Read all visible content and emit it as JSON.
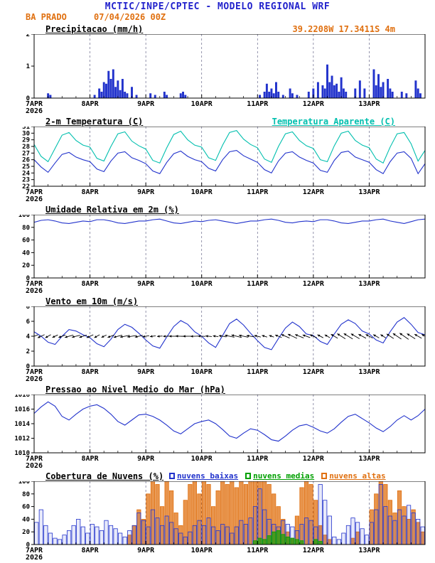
{
  "header": {
    "title": "MCTIC/INPE/CPTEC - MODELO REGIONAL WRF",
    "station": "BA PRADO",
    "run": "07/04/2026 00Z",
    "coords": "39.2208W 17.3411S 4m"
  },
  "colors": {
    "header_blue": "#2222cc",
    "orange": "#e07010",
    "cyan": "#00bfae",
    "line_blue": "#2233cc",
    "green": "#00a000",
    "grid": "#666688"
  },
  "x_axis": {
    "labels": [
      "7APR",
      "8APR",
      "9APR",
      "10APR",
      "11APR",
      "12APR",
      "13APR"
    ],
    "year": "2026",
    "hours_total": 168,
    "day_step": 24
  },
  "chart_data": [
    {
      "type": "bar",
      "title": "Precipitacao (mm/h)",
      "ylabel": "mm/h",
      "ylim": [
        0,
        2
      ],
      "yticks": [
        0,
        1,
        2
      ],
      "color": "#2233cc",
      "bars": [
        [
          6,
          0.15
        ],
        [
          7,
          0.1
        ],
        [
          26,
          0.1
        ],
        [
          28,
          0.3
        ],
        [
          29,
          0.2
        ],
        [
          30,
          0.5
        ],
        [
          31,
          0.45
        ],
        [
          32,
          0.85
        ],
        [
          33,
          0.6
        ],
        [
          34,
          0.9
        ],
        [
          35,
          0.35
        ],
        [
          36,
          0.55
        ],
        [
          37,
          0.25
        ],
        [
          38,
          0.6
        ],
        [
          39,
          0.2
        ],
        [
          40,
          0.15
        ],
        [
          42,
          0.35
        ],
        [
          44,
          0.1
        ],
        [
          50,
          0.15
        ],
        [
          52,
          0.1
        ],
        [
          56,
          0.2
        ],
        [
          57,
          0.1
        ],
        [
          63,
          0.15
        ],
        [
          64,
          0.2
        ],
        [
          65,
          0.1
        ],
        [
          97,
          0.1
        ],
        [
          99,
          0.2
        ],
        [
          100,
          0.45
        ],
        [
          101,
          0.2
        ],
        [
          102,
          0.3
        ],
        [
          103,
          0.15
        ],
        [
          104,
          0.5
        ],
        [
          105,
          0.2
        ],
        [
          107,
          0.1
        ],
        [
          110,
          0.3
        ],
        [
          111,
          0.15
        ],
        [
          113,
          0.1
        ],
        [
          118,
          0.2
        ],
        [
          120,
          0.3
        ],
        [
          122,
          0.5
        ],
        [
          124,
          0.4
        ],
        [
          125,
          0.3
        ],
        [
          126,
          1.05
        ],
        [
          127,
          0.5
        ],
        [
          128,
          0.7
        ],
        [
          129,
          0.4
        ],
        [
          130,
          0.45
        ],
        [
          131,
          0.2
        ],
        [
          132,
          0.65
        ],
        [
          133,
          0.3
        ],
        [
          134,
          0.2
        ],
        [
          138,
          0.3
        ],
        [
          140,
          0.55
        ],
        [
          142,
          0.3
        ],
        [
          146,
          0.9
        ],
        [
          147,
          0.4
        ],
        [
          148,
          0.75
        ],
        [
          149,
          0.35
        ],
        [
          150,
          0.5
        ],
        [
          152,
          0.6
        ],
        [
          153,
          0.3
        ],
        [
          154,
          0.2
        ],
        [
          158,
          0.2
        ],
        [
          160,
          0.15
        ],
        [
          164,
          0.55
        ],
        [
          165,
          0.3
        ],
        [
          166,
          0.15
        ]
      ]
    },
    {
      "type": "line",
      "title": "2-m Temperatura (C)",
      "right_label": "Temperatura Aparente (C)",
      "ylim": [
        22,
        31
      ],
      "yticks": [
        22,
        23,
        24,
        25,
        26,
        27,
        28,
        29,
        30,
        31
      ],
      "step_h": 3,
      "series": [
        {
          "name": "2-m Temperatura (C)",
          "color": "#2233cc",
          "values": [
            26.0,
            24.9,
            24.1,
            25.5,
            26.8,
            27.1,
            26.4,
            26.0,
            25.7,
            24.6,
            24.2,
            25.8,
            27.0,
            27.2,
            26.3,
            25.9,
            25.4,
            24.3,
            23.9,
            25.6,
            26.9,
            27.3,
            26.5,
            26.0,
            25.7,
            24.7,
            24.3,
            26.0,
            27.2,
            27.4,
            26.6,
            26.1,
            25.6,
            24.5,
            24.0,
            25.8,
            27.0,
            27.2,
            26.4,
            25.9,
            25.5,
            24.4,
            24.1,
            25.9,
            27.1,
            27.3,
            26.4,
            26.0,
            25.6,
            24.5,
            23.9,
            25.7,
            27.0,
            27.2,
            26.2,
            23.9,
            25.4
          ]
        },
        {
          "name": "Temperatura Aparente (C)",
          "color": "#00bfae",
          "values": [
            28.3,
            26.5,
            25.7,
            27.7,
            29.7,
            30.1,
            28.9,
            28.2,
            27.9,
            26.2,
            25.8,
            28.0,
            29.9,
            30.2,
            28.8,
            28.1,
            27.6,
            25.9,
            25.5,
            27.8,
            29.8,
            30.3,
            29.0,
            28.2,
            27.9,
            26.3,
            25.9,
            28.2,
            30.1,
            30.4,
            29.1,
            28.3,
            27.8,
            26.1,
            25.6,
            28.0,
            29.9,
            30.2,
            28.9,
            28.1,
            27.7,
            26.0,
            25.7,
            28.1,
            30.0,
            30.3,
            28.9,
            28.2,
            27.8,
            26.1,
            25.5,
            27.9,
            29.9,
            30.1,
            28.4,
            25.8,
            27.4
          ]
        }
      ]
    },
    {
      "type": "line",
      "title": "Umidade Relativa em 2m (%)",
      "ylim": [
        0,
        100
      ],
      "yticks": [
        0,
        20,
        40,
        60,
        80,
        100
      ],
      "step_h": 3,
      "series": [
        {
          "name": "Umidade Relativa em 2m (%)",
          "color": "#2233cc",
          "values": [
            88,
            91,
            92,
            90,
            87,
            86,
            88,
            90,
            89,
            92,
            92,
            90,
            87,
            86,
            88,
            90,
            90,
            92,
            93,
            90,
            87,
            86,
            88,
            90,
            89,
            91,
            92,
            90,
            88,
            86,
            88,
            90,
            90,
            92,
            93,
            91,
            88,
            87,
            89,
            90,
            89,
            92,
            92,
            90,
            87,
            86,
            88,
            90,
            90,
            92,
            93,
            90,
            88,
            86,
            89,
            92,
            93
          ]
        }
      ]
    },
    {
      "type": "wind",
      "title": "Vento em 10m (m/s)",
      "ylim": [
        0,
        8
      ],
      "yticks": [
        0,
        2,
        4,
        6,
        8
      ],
      "step_h": 3,
      "color": "#2233cc",
      "arrow_row_value": 4,
      "speed": [
        4.6,
        4.0,
        3.2,
        2.9,
        4.0,
        4.9,
        4.7,
        4.2,
        3.8,
        3.0,
        2.6,
        3.6,
        4.9,
        5.6,
        5.2,
        4.4,
        3.5,
        2.7,
        2.4,
        3.9,
        5.3,
        6.1,
        5.6,
        4.6,
        4.0,
        3.1,
        2.5,
        4.1,
        5.7,
        6.3,
        5.5,
        4.4,
        3.4,
        2.5,
        2.2,
        3.7,
        5.1,
        5.9,
        5.3,
        4.3,
        4.1,
        3.3,
        2.9,
        4.3,
        5.6,
        6.2,
        5.7,
        4.7,
        4.3,
        3.5,
        3.1,
        4.6,
        5.9,
        6.5,
        5.6,
        4.5,
        4.2
      ],
      "dir_deg": [
        200,
        205,
        210,
        205,
        200,
        196,
        194,
        198,
        204,
        209,
        206,
        200,
        195,
        191,
        190,
        194,
        190,
        188,
        185,
        182,
        180,
        178,
        180,
        182,
        178,
        175,
        172,
        170,
        168,
        166,
        168,
        170,
        166,
        162,
        160,
        158,
        156,
        155,
        158,
        160,
        156,
        152,
        150,
        149,
        148,
        148,
        150,
        152,
        152,
        150,
        148,
        147,
        146,
        145,
        148,
        150,
        150
      ]
    },
    {
      "type": "line",
      "title": "Pressao ao Nivel Medio do Mar (hPa)",
      "ylim": [
        1010,
        1018
      ],
      "yticks": [
        1010,
        1012,
        1014,
        1016,
        1018
      ],
      "step_h": 3,
      "series": [
        {
          "name": "Pressao ao Nivel Medio do Mar (hPa)",
          "color": "#2233cc",
          "values": [
            1015.4,
            1016.3,
            1017.0,
            1016.4,
            1015.0,
            1014.5,
            1015.3,
            1016.0,
            1016.4,
            1016.6,
            1016.1,
            1015.3,
            1014.3,
            1013.8,
            1014.5,
            1015.2,
            1015.3,
            1015.0,
            1014.5,
            1013.8,
            1013.0,
            1012.6,
            1013.3,
            1014.0,
            1014.3,
            1014.5,
            1014.0,
            1013.2,
            1012.3,
            1012.0,
            1012.7,
            1013.3,
            1013.1,
            1012.5,
            1011.8,
            1011.6,
            1012.3,
            1013.1,
            1013.7,
            1013.9,
            1013.5,
            1013.0,
            1012.7,
            1013.3,
            1014.2,
            1015.0,
            1015.3,
            1014.7,
            1014.1,
            1013.4,
            1012.9,
            1013.6,
            1014.5,
            1015.1,
            1014.5,
            1015.1,
            1016.0
          ]
        }
      ]
    },
    {
      "type": "cloud",
      "title": "Cobertura de Nuvens (%)",
      "ylim": [
        0,
        100
      ],
      "yticks": [
        0,
        20,
        40,
        60,
        80,
        100
      ],
      "step_h": 2,
      "legend": [
        {
          "label": "nuvens baixas",
          "color": "#2233cc"
        },
        {
          "label": "nuvens medias",
          "color": "#00a000"
        },
        {
          "label": "nuvens altas",
          "color": "#e07010"
        }
      ],
      "series": [
        {
          "name": "nuvens altas",
          "color": "#e07010",
          "fill": "rgba(224,112,16,0.75)",
          "values": [
            0,
            0,
            0,
            0,
            0,
            0,
            0,
            0,
            0,
            0,
            0,
            0,
            0,
            0,
            0,
            0,
            0,
            0,
            0,
            0,
            15,
            30,
            55,
            40,
            80,
            100,
            95,
            60,
            100,
            85,
            50,
            30,
            70,
            95,
            100,
            80,
            100,
            95,
            60,
            85,
            100,
            95,
            100,
            90,
            100,
            95,
            100,
            100,
            100,
            100,
            95,
            80,
            60,
            40,
            20,
            10,
            45,
            90,
            100,
            95,
            70,
            30,
            15,
            8,
            0,
            0,
            0,
            0,
            10,
            20,
            0,
            0,
            55,
            80,
            100,
            95,
            70,
            50,
            85,
            60,
            40,
            55,
            35,
            20
          ]
        },
        {
          "name": "nuvens baixas",
          "color": "#2233cc",
          "fill": "rgba(34,51,204,0.10)",
          "values": [
            35,
            55,
            30,
            18,
            10,
            8,
            15,
            22,
            30,
            40,
            28,
            18,
            32,
            28,
            22,
            38,
            30,
            25,
            18,
            12,
            22,
            30,
            50,
            38,
            28,
            55,
            42,
            30,
            45,
            35,
            25,
            18,
            12,
            20,
            30,
            38,
            30,
            42,
            28,
            22,
            32,
            28,
            18,
            28,
            38,
            32,
            42,
            60,
            88,
            55,
            40,
            32,
            28,
            38,
            32,
            28,
            22,
            32,
            42,
            38,
            28,
            95,
            70,
            45,
            12,
            8,
            18,
            30,
            42,
            35,
            25,
            15,
            35,
            55,
            95,
            60,
            45,
            38,
            55,
            45,
            62,
            50,
            40,
            28
          ]
        },
        {
          "name": "nuvens medias",
          "color": "#00a000",
          "fill": "rgba(0,160,0,0.65)",
          "values": [
            0,
            0,
            0,
            0,
            0,
            0,
            0,
            0,
            0,
            0,
            0,
            0,
            0,
            0,
            0,
            0,
            0,
            0,
            0,
            0,
            0,
            0,
            0,
            0,
            0,
            0,
            0,
            0,
            0,
            0,
            0,
            0,
            0,
            0,
            0,
            0,
            0,
            0,
            0,
            0,
            0,
            0,
            0,
            0,
            0,
            0,
            0,
            6,
            10,
            8,
            14,
            20,
            22,
            16,
            12,
            10,
            8,
            6,
            0,
            0,
            8,
            5,
            0,
            0,
            0,
            0,
            0,
            0,
            0,
            0,
            0,
            0,
            0,
            0,
            0,
            0,
            0,
            0,
            0,
            0,
            0,
            0,
            0,
            0
          ]
        }
      ]
    }
  ]
}
